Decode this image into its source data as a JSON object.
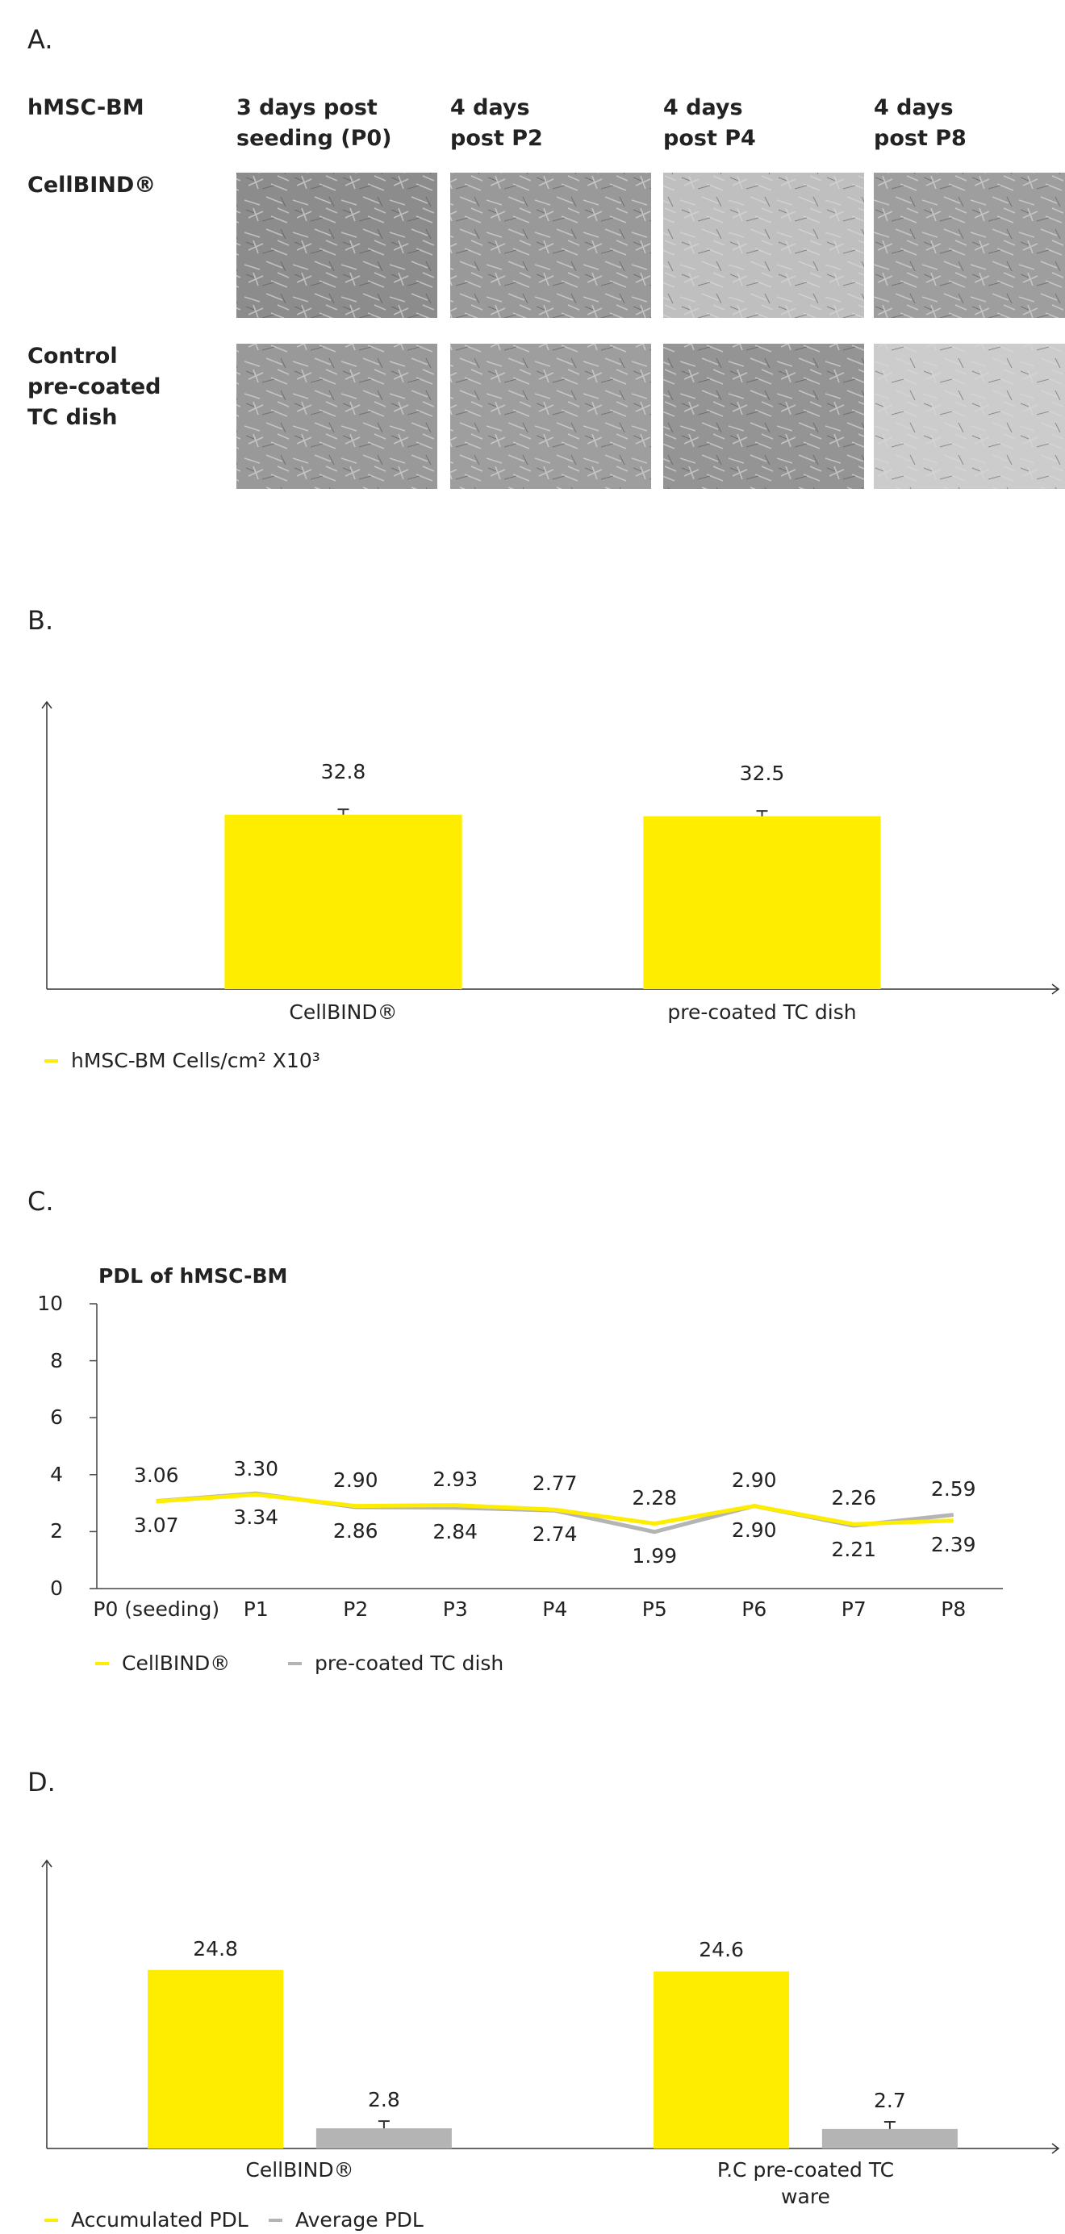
{
  "panel_a": {
    "label": "A.",
    "row_header": "hMSC-BM",
    "columns": [
      [
        "3 days post",
        "seeding (P0)"
      ],
      [
        "4 days",
        "post P2"
      ],
      [
        "4 days",
        "post P4"
      ],
      [
        "4 days",
        "post P8"
      ]
    ],
    "rows": [
      [
        "CellBIND®"
      ],
      [
        "Control",
        "pre-coated",
        "TC dish"
      ]
    ]
  },
  "chart_data": [
    {
      "panel_label": "B.",
      "type": "bar",
      "categories": [
        "CellBIND®",
        "pre-coated TC dish"
      ],
      "series": [
        {
          "name": "hMSC-BM Cells/cm² X10³",
          "color": "#ffed00",
          "values": [
            32.8,
            32.5
          ],
          "errors": [
            1.0,
            1.0
          ]
        }
      ],
      "ylim": [
        0,
        54
      ]
    },
    {
      "panel_label": "C.",
      "type": "line",
      "title": "PDL of hMSC-BM",
      "categories": [
        "P0 (seeding)",
        "P1",
        "P2",
        "P3",
        "P4",
        "P5",
        "P6",
        "P7",
        "P8"
      ],
      "series": [
        {
          "name": "CellBIND®",
          "color": "#ffed00",
          "values": [
            3.06,
            3.3,
            2.9,
            2.93,
            2.77,
            2.28,
            2.9,
            2.26,
            2.39
          ],
          "value_labels": [
            "3.06",
            "3.30",
            "2.90",
            "2.93",
            "2.77",
            "2.28",
            "2.90",
            "2.26",
            "2.39"
          ]
        },
        {
          "name": "pre-coated TC dish",
          "color": "#b4b4b4",
          "values": [
            3.07,
            3.34,
            2.86,
            2.84,
            2.74,
            1.99,
            2.9,
            2.21,
            2.59
          ],
          "value_labels": [
            "3.07",
            "3.34",
            "2.86",
            "2.84",
            "2.74",
            "1.99",
            "2.90",
            "2.21",
            "2.59"
          ]
        }
      ],
      "ylim": [
        0,
        10
      ],
      "yticks": [
        0,
        2,
        4,
        6,
        8,
        10
      ]
    },
    {
      "panel_label": "D.",
      "type": "bar",
      "categories": [
        "CellBIND®",
        "P.C pre-coated TC ware"
      ],
      "series": [
        {
          "name": "Accumulated PDL",
          "color": "#ffed00",
          "values": [
            24.8,
            24.6
          ]
        },
        {
          "name": "Average PDL",
          "color": "#b4b4b4",
          "values": [
            2.8,
            2.7
          ],
          "errors": [
            1.0,
            1.0
          ]
        }
      ],
      "ylim": [
        0,
        40
      ]
    }
  ]
}
